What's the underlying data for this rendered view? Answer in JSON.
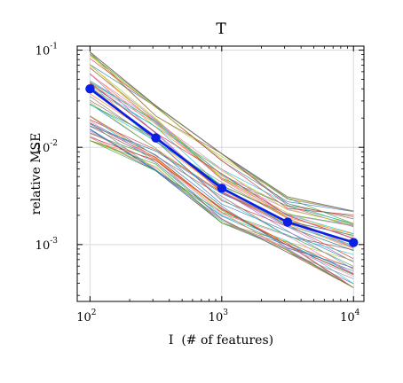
{
  "chart_data": {
    "type": "line",
    "title": "T",
    "xlabel": "I  (# of features)",
    "ylabel": "relative MSE",
    "x_scale": "log",
    "y_scale": "log",
    "xlim": [
      80,
      12000
    ],
    "ylim": [
      0.00026,
      0.11
    ],
    "grid": true,
    "legend": "none",
    "x_ticks": [
      {
        "value": 100,
        "base": "10",
        "exp": "2"
      },
      {
        "value": 1000,
        "base": "10",
        "exp": "3"
      },
      {
        "value": 10000,
        "base": "10",
        "exp": "4"
      }
    ],
    "y_ticks": [
      {
        "value": 0.1,
        "base": "10",
        "exp": "-1"
      },
      {
        "value": 0.01,
        "base": "10",
        "exp": "-2"
      },
      {
        "value": 0.001,
        "base": "10",
        "exp": "-3"
      }
    ],
    "x": [
      100,
      316,
      1000,
      3162,
      10000
    ],
    "mean_series": {
      "values": [
        0.04,
        0.0125,
        0.0038,
        0.0017,
        0.00105
      ],
      "color": "#0a1fe6"
    },
    "background_series_count": 60,
    "background_series_seed": 17,
    "background_colors": [
      "#1f77b4",
      "#ff7f0e",
      "#2ca02c",
      "#d62728",
      "#9467bd",
      "#8c564b",
      "#e377c2",
      "#7f7f7f",
      "#bcbd22",
      "#17becf"
    ],
    "background_envelope": {
      "low": [
        0.011,
        0.0055,
        0.0016,
        0.0008,
        0.00034
      ],
      "high": [
        0.1,
        0.028,
        0.009,
        0.0032,
        0.0023
      ]
    }
  }
}
